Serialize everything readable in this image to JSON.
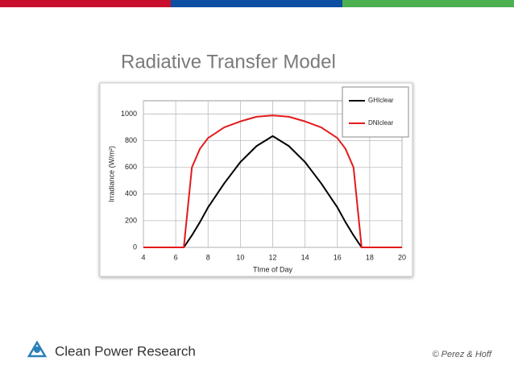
{
  "chart_data": {
    "type": "line",
    "title": "Radiative Transfer Model",
    "x_label": "TIme of Day",
    "y_label": "Irradiance (W/m²)",
    "x": [
      4,
      6.5,
      7,
      7.5,
      8,
      9,
      10,
      11,
      12,
      13,
      14,
      15,
      16,
      16.5,
      17,
      17.5,
      20
    ],
    "series": [
      {
        "name": "GHIclear",
        "color": "#000000",
        "values": [
          0,
          0,
          90,
          190,
          300,
          480,
          640,
          760,
          835,
          760,
          640,
          480,
          300,
          190,
          90,
          0,
          0
        ]
      },
      {
        "name": "DNIclear",
        "color": "#e41a1c",
        "values": [
          0,
          0,
          600,
          740,
          820,
          900,
          945,
          980,
          990,
          980,
          945,
          900,
          820,
          740,
          600,
          0,
          0
        ]
      }
    ],
    "xlim": [
      4,
      20
    ],
    "xticks": [
      4,
      6,
      8,
      10,
      12,
      14,
      16,
      18,
      20
    ],
    "ylim": [
      0,
      1100
    ],
    "yticks": [
      0,
      200,
      400,
      600,
      800,
      1000
    ],
    "grid": true,
    "legend": "top-right"
  },
  "footer": {
    "logo_text": "Clean Power Research",
    "credit": "© Perez & Hoff"
  }
}
